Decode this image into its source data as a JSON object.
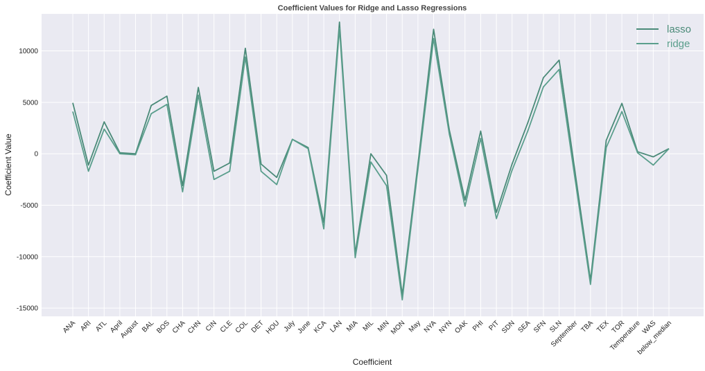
{
  "chart_data": {
    "type": "line",
    "title": "Coefficient Values for Ridge and Lasso Regressions",
    "xlabel": "Coefficient",
    "ylabel": "Coefficient Value",
    "ylim": [
      -15800,
      13600
    ],
    "yticks": [
      -15000,
      -10000,
      -5000,
      0,
      5000,
      10000
    ],
    "grid": true,
    "legend": "top-right",
    "categories": [
      "ANA",
      "ARI",
      "ATL",
      "April",
      "August",
      "BAL",
      "BOS",
      "CHA",
      "CHN",
      "CIN",
      "CLE",
      "COL",
      "DET",
      "HOU",
      "July",
      "June",
      "KCA",
      "LAN",
      "MIA",
      "MIL",
      "MIN",
      "MON",
      "May",
      "NYA",
      "NYN",
      "OAK",
      "PHI",
      "PIT",
      "SDN",
      "SEA",
      "SFN",
      "SLN",
      "September",
      "TBA",
      "TEX",
      "TOR",
      "Temperature",
      "WAS",
      "below_median"
    ],
    "series": [
      {
        "name": "lasso",
        "color": "#4a8a78",
        "values": [
          4950,
          -1100,
          3100,
          100,
          0,
          4700,
          5600,
          -3100,
          6450,
          -1700,
          -900,
          10250,
          -1000,
          -2300,
          1400,
          600,
          -6700,
          12800,
          -9700,
          0,
          -2100,
          -13700,
          -1000,
          12100,
          2300,
          -4500,
          2200,
          -5700,
          -1000,
          3000,
          7400,
          9100,
          -1600,
          -12300,
          1300,
          4900,
          200,
          -300,
          500
        ]
      },
      {
        "name": "ridge",
        "color": "#5a9e8c",
        "values": [
          4100,
          -1700,
          2400,
          0,
          -100,
          3900,
          4800,
          -3700,
          5700,
          -2500,
          -1700,
          9400,
          -1700,
          -3000,
          1400,
          500,
          -7300,
          12200,
          -10100,
          -800,
          -3100,
          -14200,
          -1500,
          11200,
          1900,
          -5100,
          1500,
          -6300,
          -1600,
          2200,
          6500,
          8200,
          -2300,
          -12700,
          600,
          4100,
          100,
          -1100,
          500
        ]
      }
    ]
  }
}
